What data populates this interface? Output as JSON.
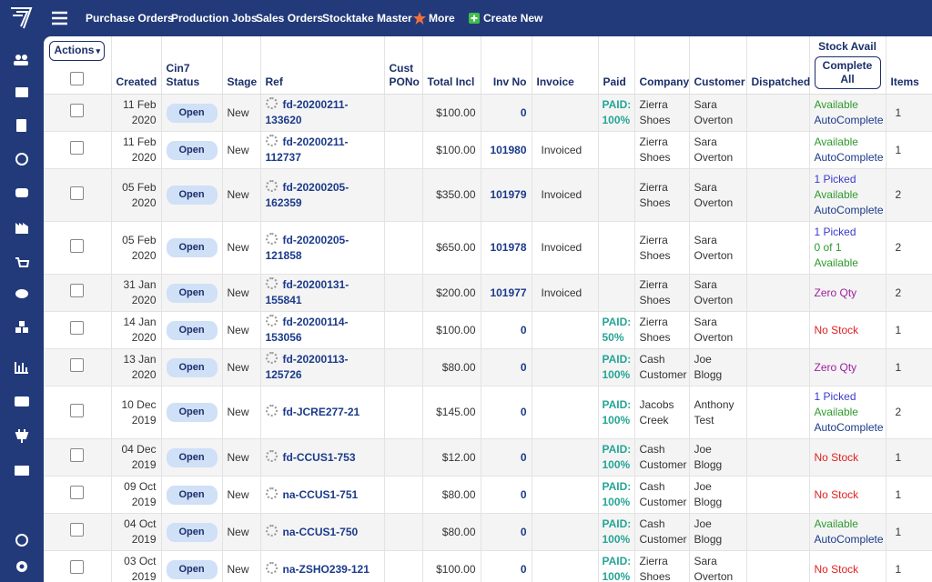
{
  "nav": {
    "items": [
      "Purchase Orders",
      "Production Jobs",
      "Sales Orders",
      "Stocktake Master"
    ],
    "more": "More",
    "create": "Create New"
  },
  "table": {
    "actions": "Actions",
    "complete_all": "Complete All",
    "headers": [
      "Created",
      "Cin7 Status",
      "Stage",
      "Ref",
      "Cust PONo",
      "Total Incl",
      "Inv No",
      "Invoice",
      "Paid",
      "Company",
      "Customer",
      "Dispatched",
      "Stock Avail",
      "Items"
    ],
    "rows": [
      {
        "created": "11 Feb 2020",
        "status": "Open",
        "stage": "New",
        "ref": "fd-20200211-133620",
        "total": "$100.00",
        "inv_no": "0",
        "paid": "PAID: 100%",
        "company": "Zierra Shoes",
        "customer": "Sara Overton",
        "stock": [
          {
            "text": "Available",
            "color": "#2e9a2e"
          },
          {
            "text": "AutoComplete",
            "color": "#1b3a8a"
          }
        ],
        "items": 1
      },
      {
        "created": "11 Feb 2020",
        "status": "Open",
        "stage": "New",
        "ref": "fd-20200211-112737",
        "total": "$100.00",
        "inv_no": "101980",
        "invoice": "Invoiced",
        "company": "Zierra Shoes",
        "customer": "Sara Overton",
        "stock": [
          {
            "text": "Available",
            "color": "#2e9a2e"
          },
          {
            "text": "AutoComplete",
            "color": "#1b3a8a"
          }
        ],
        "items": 1
      },
      {
        "created": "05 Feb 2020",
        "status": "Open",
        "stage": "New",
        "ref": "fd-20200205-162359",
        "total": "$350.00",
        "inv_no": "101979",
        "invoice": "Invoiced",
        "company": "Zierra Shoes",
        "customer": "Sara Overton",
        "stock": [
          {
            "text": "1 Picked",
            "color": "#3a3ad0"
          },
          {
            "text": "Available",
            "color": "#2e9a2e"
          },
          {
            "text": "AutoComplete",
            "color": "#1b3a8a"
          }
        ],
        "items": 2
      },
      {
        "created": "05 Feb 2020",
        "status": "Open",
        "stage": "New",
        "ref": "fd-20200205-121858",
        "total": "$650.00",
        "inv_no": "101978",
        "invoice": "Invoiced",
        "company": "Zierra Shoes",
        "customer": "Sara Overton",
        "stock": [
          {
            "text": "1 Picked",
            "color": "#3a3ad0"
          },
          {
            "text": "0 of 1",
            "color": "#2e9a2e"
          },
          {
            "text": "Available",
            "color": "#2e9a2e"
          }
        ],
        "items": 2
      },
      {
        "created": "31 Jan 2020",
        "status": "Open",
        "stage": "New",
        "ref": "fd-20200131-155841",
        "total": "$200.00",
        "inv_no": "101977",
        "invoice": "Invoiced",
        "company": "Zierra Shoes",
        "customer": "Sara Overton",
        "stock": [
          {
            "text": "Zero Qty",
            "color": "#a020a0"
          }
        ],
        "items": 2
      },
      {
        "created": "14 Jan 2020",
        "status": "Open",
        "stage": "New",
        "ref": "fd-20200114-153056",
        "total": "$100.00",
        "inv_no": "0",
        "paid": "PAID: 50%",
        "company": "Zierra Shoes",
        "customer": "Sara Overton",
        "stock": [
          {
            "text": "No Stock",
            "color": "#e02020"
          }
        ],
        "items": 1
      },
      {
        "created": "13 Jan 2020",
        "status": "Open",
        "stage": "New",
        "ref": "fd-20200113-125726",
        "total": "$80.00",
        "inv_no": "0",
        "paid": "PAID: 100%",
        "company": "Cash Customer",
        "customer": "Joe Blogg",
        "stock": [
          {
            "text": "Zero Qty",
            "color": "#a020a0"
          }
        ],
        "items": 1
      },
      {
        "created": "10 Dec 2019",
        "status": "Open",
        "stage": "New",
        "ref": "fd-JCRE277-21",
        "total": "$145.00",
        "inv_no": "0",
        "paid": "PAID: 100%",
        "company": "Jacobs Creek",
        "customer": "Anthony Test",
        "stock": [
          {
            "text": "1 Picked",
            "color": "#3a3ad0"
          },
          {
            "text": "Available",
            "color": "#2e9a2e"
          },
          {
            "text": "AutoComplete",
            "color": "#1b3a8a"
          }
        ],
        "items": 2
      },
      {
        "created": "04 Dec 2019",
        "status": "Open",
        "stage": "New",
        "ref": "fd-CCUS1-753",
        "total": "$12.00",
        "inv_no": "0",
        "paid": "PAID: 100%",
        "company": "Cash Customer",
        "customer": "Joe Blogg",
        "stock": [
          {
            "text": "No Stock",
            "color": "#e02020"
          }
        ],
        "items": 1
      },
      {
        "created": "09 Oct 2019",
        "status": "Open",
        "stage": "New",
        "ref": "na-CCUS1-751",
        "total": "$80.00",
        "inv_no": "0",
        "paid": "PAID: 100%",
        "company": "Cash Customer",
        "customer": "Joe Blogg",
        "stock": [
          {
            "text": "No Stock",
            "color": "#e02020"
          }
        ],
        "items": 1
      },
      {
        "created": "04 Oct 2019",
        "status": "Open",
        "stage": "New",
        "ref": "na-CCUS1-750",
        "total": "$80.00",
        "inv_no": "0",
        "paid": "PAID: 100%",
        "company": "Cash Customer",
        "customer": "Joe Blogg",
        "stock": [
          {
            "text": "Available",
            "color": "#2e9a2e"
          },
          {
            "text": "AutoComplete",
            "color": "#1b3a8a"
          }
        ],
        "items": 1
      },
      {
        "created": "03 Oct 2019",
        "status": "Open",
        "stage": "New",
        "ref": "na-ZSHO239-121",
        "total": "$100.00",
        "inv_no": "0",
        "paid": "PAID: 100%",
        "company": "Zierra Shoes",
        "customer": "Sara Overton",
        "stock": [
          {
            "text": "No Stock",
            "color": "#e02020"
          }
        ],
        "items": 1
      }
    ]
  }
}
